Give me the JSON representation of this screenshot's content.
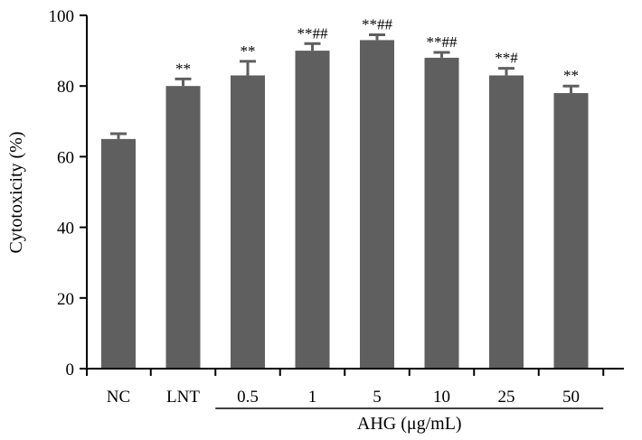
{
  "chart_data": {
    "type": "bar",
    "ylabel": "Cytotoxicity (%)",
    "ylim": [
      0,
      100
    ],
    "yticks": [
      0,
      20,
      40,
      60,
      80,
      100
    ],
    "categories": [
      "NC",
      "LNT",
      "0.5",
      "1",
      "5",
      "10",
      "25",
      "50"
    ],
    "values": [
      65,
      80,
      83,
      90,
      93,
      88,
      83,
      78
    ],
    "errors": [
      1.5,
      2,
      4,
      2,
      1.5,
      1.5,
      2,
      2
    ],
    "significance": [
      "",
      "**",
      "**",
      "**##",
      "**##",
      "**##",
      "**#",
      "**"
    ],
    "group_label": {
      "text": "AHG (μg/mL)",
      "categories": [
        "0.5",
        "1",
        "5",
        "10",
        "25",
        "50"
      ]
    },
    "bar_color": "#5f5f5f",
    "grid": false
  }
}
